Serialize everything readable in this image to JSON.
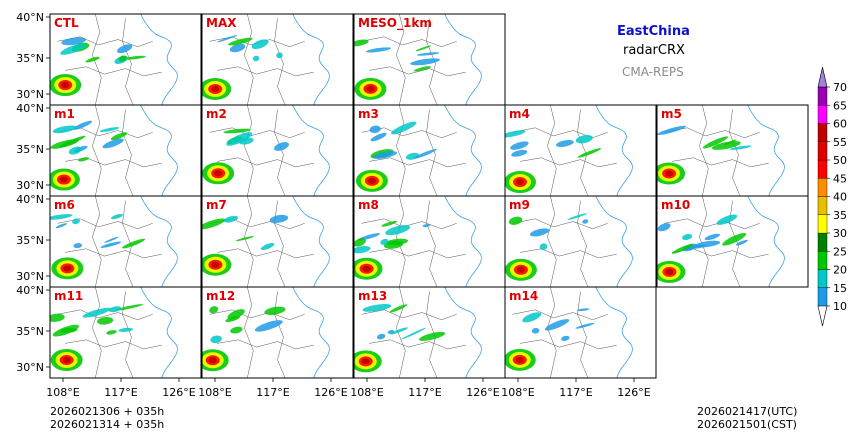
{
  "header": {
    "region": "EastChina",
    "product": "radarCRX",
    "model": "CMA-REPS"
  },
  "panels": [
    {
      "label": "CTL"
    },
    {
      "label": "MAX"
    },
    {
      "label": "MESO_1km"
    },
    {
      "label": "m1"
    },
    {
      "label": "m2"
    },
    {
      "label": "m3"
    },
    {
      "label": "m4"
    },
    {
      "label": "m5"
    },
    {
      "label": "m6"
    },
    {
      "label": "m7"
    },
    {
      "label": "m8"
    },
    {
      "label": "m9"
    },
    {
      "label": "m10"
    },
    {
      "label": "m11"
    },
    {
      "label": "m12"
    },
    {
      "label": "m13"
    },
    {
      "label": "m14"
    }
  ],
  "axes": {
    "lat_ticks": [
      "40°N",
      "35°N",
      "30°N"
    ],
    "lon_ticks": [
      "108°E",
      "117°E",
      "126°E"
    ]
  },
  "colorbar": {
    "levels": [
      "10",
      "15",
      "20",
      "25",
      "30",
      "35",
      "40",
      "45",
      "50",
      "55",
      "60",
      "65",
      "70"
    ],
    "colors": [
      "#1e9be8",
      "#00c8c8",
      "#00c800",
      "#008000",
      "#ffff00",
      "#e6c000",
      "#ff8c00",
      "#ff0000",
      "#e00000",
      "#c00000",
      "#ff00ff",
      "#9a00b4",
      "#a080d8"
    ]
  },
  "footer": {
    "init_utc": "2026021306  +  035h",
    "init_cst": "2026021314  +  035h",
    "valid_utc": "2026021417(UTC)",
    "valid_cst": "2026021501(CST)"
  }
}
